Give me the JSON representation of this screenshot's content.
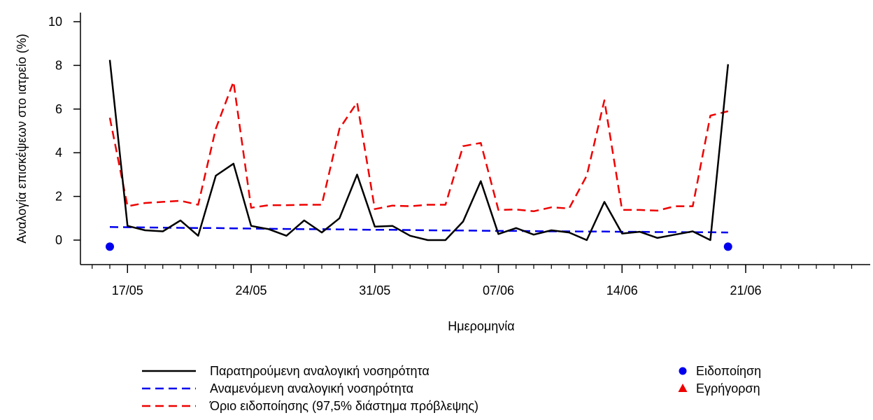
{
  "chart_data": {
    "type": "line",
    "title": "",
    "xlabel": "Ημερομηνία",
    "ylabel": "Αναλογία επισκέψεων στο ιατρείο (%)",
    "ylim": [
      -1,
      10.5
    ],
    "y_ticks": [
      0,
      2,
      4,
      6,
      8,
      10
    ],
    "xlim": [
      "2020-05-14",
      "2020-06-27"
    ],
    "x_ticks": [
      {
        "date": "2020-05-17",
        "label": "17/05"
      },
      {
        "date": "2020-05-24",
        "label": "24/05"
      },
      {
        "date": "2020-05-31",
        "label": "31/05"
      },
      {
        "date": "2020-06-07",
        "label": "07/06"
      },
      {
        "date": "2020-06-14",
        "label": "14/06"
      },
      {
        "date": "2020-06-21",
        "label": "21/06"
      }
    ],
    "x": [
      "2020-05-16",
      "2020-05-17",
      "2020-05-18",
      "2020-05-19",
      "2020-05-20",
      "2020-05-21",
      "2020-05-22",
      "2020-05-23",
      "2020-05-24",
      "2020-05-25",
      "2020-05-26",
      "2020-05-27",
      "2020-05-28",
      "2020-05-29",
      "2020-05-30",
      "2020-05-31",
      "2020-06-01",
      "2020-06-02",
      "2020-06-03",
      "2020-06-04",
      "2020-06-05",
      "2020-06-06",
      "2020-06-07",
      "2020-06-08",
      "2020-06-09",
      "2020-06-10",
      "2020-06-11",
      "2020-06-12",
      "2020-06-13",
      "2020-06-14",
      "2020-06-15",
      "2020-06-16",
      "2020-06-17",
      "2020-06-18",
      "2020-06-19",
      "2020-06-20"
    ],
    "series": [
      {
        "name": "Παρατηρούμενη αναλογική νοσηρότητα",
        "color": "#000000",
        "dash": "solid",
        "values": [
          8.25,
          0.65,
          0.45,
          0.4,
          0.9,
          0.2,
          2.95,
          3.5,
          0.65,
          0.5,
          0.2,
          0.9,
          0.35,
          1.0,
          3.0,
          0.62,
          0.65,
          0.2,
          0.0,
          0.0,
          0.85,
          2.7,
          0.28,
          0.55,
          0.25,
          0.45,
          0.35,
          0.0,
          1.75,
          0.3,
          0.38,
          0.1,
          0.25,
          0.4,
          0.0,
          8.05
        ]
      },
      {
        "name": "Αναμενόμενη αναλογική νοσηρότητα",
        "color": "#0000ee",
        "dash": "dashed",
        "values": [
          0.6,
          0.59,
          0.58,
          0.57,
          0.56,
          0.55,
          0.55,
          0.54,
          0.53,
          0.52,
          0.51,
          0.5,
          0.5,
          0.49,
          0.48,
          0.47,
          0.47,
          0.46,
          0.45,
          0.44,
          0.44,
          0.43,
          0.42,
          0.42,
          0.41,
          0.4,
          0.4,
          0.39,
          0.39,
          0.38,
          0.38,
          0.37,
          0.37,
          0.36,
          0.36,
          0.35
        ]
      },
      {
        "name": "Όριο ειδοποίησης (97,5% διάστημα πρόβλεψης)",
        "color": "#ee0000",
        "dash": "dashed",
        "values": [
          5.6,
          1.55,
          1.7,
          1.75,
          1.8,
          1.62,
          5.1,
          7.25,
          1.48,
          1.6,
          1.6,
          1.62,
          1.62,
          5.1,
          6.3,
          1.42,
          1.58,
          1.55,
          1.62,
          1.62,
          4.3,
          4.45,
          1.38,
          1.4,
          1.32,
          1.5,
          1.45,
          2.95,
          6.4,
          1.38,
          1.38,
          1.35,
          1.55,
          1.55,
          5.7,
          5.9
        ]
      }
    ],
    "markers": [
      {
        "series": "Ειδοποίηση",
        "shape": "circle",
        "color": "#0000ee",
        "points": [
          {
            "x": "2020-05-16",
            "y": -0.3
          },
          {
            "x": "2020-06-20",
            "y": -0.3
          }
        ]
      },
      {
        "series": "Εγρήγορση",
        "shape": "triangle",
        "color": "#ee0000",
        "points": []
      }
    ],
    "legend": {
      "lines": [
        {
          "label": "Παρατηρούμενη αναλογική νοσηρότητα",
          "color": "#000000",
          "dash": "solid"
        },
        {
          "label": "Αναμενόμενη αναλογική νοσηρότητα",
          "color": "#0000ee",
          "dash": "dashed"
        },
        {
          "label": "Όριο ειδοποίησης (97,5% διάστημα πρόβλεψης)",
          "color": "#ee0000",
          "dash": "dashed"
        }
      ],
      "symbols": [
        {
          "label": "Ειδοποίηση",
          "shape": "circle",
          "color": "#0000ee"
        },
        {
          "label": "Εγρήγορση",
          "shape": "triangle",
          "color": "#ee0000"
        }
      ],
      "placement": "bottom"
    },
    "grid": false
  }
}
